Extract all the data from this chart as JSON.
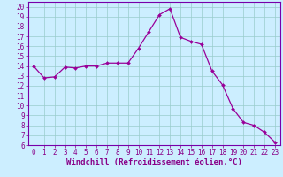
{
  "x": [
    0,
    1,
    2,
    3,
    4,
    5,
    6,
    7,
    8,
    9,
    10,
    11,
    12,
    13,
    14,
    15,
    16,
    17,
    18,
    19,
    20,
    21,
    22,
    23
  ],
  "y": [
    14.0,
    12.8,
    12.9,
    13.9,
    13.8,
    14.0,
    14.0,
    14.3,
    14.3,
    14.3,
    15.8,
    17.5,
    19.2,
    19.8,
    16.9,
    16.5,
    16.2,
    13.5,
    12.1,
    9.7,
    8.3,
    8.0,
    7.3,
    6.3
  ],
  "line_color": "#990099",
  "marker": "D",
  "markersize": 2.0,
  "linewidth": 0.9,
  "bg_color": "#cceeff",
  "grid_color": "#99cccc",
  "xlabel": "Windchill (Refroidissement éolien,°C)",
  "xlabel_fontsize": 6.5,
  "xlim": [
    -0.5,
    23.5
  ],
  "ylim": [
    6,
    20.5
  ],
  "yticks": [
    6,
    7,
    8,
    9,
    10,
    11,
    12,
    13,
    14,
    15,
    16,
    17,
    18,
    19,
    20
  ],
  "xticks": [
    0,
    1,
    2,
    3,
    4,
    5,
    6,
    7,
    8,
    9,
    10,
    11,
    12,
    13,
    14,
    15,
    16,
    17,
    18,
    19,
    20,
    21,
    22,
    23
  ],
  "tick_fontsize": 5.5,
  "axis_color": "#880088",
  "spine_color": "#7700aa"
}
